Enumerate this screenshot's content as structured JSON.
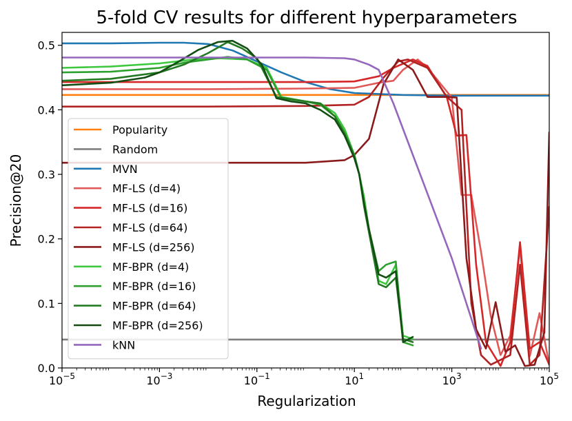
{
  "chart_data": {
    "type": "line",
    "title": "5-fold CV results for different hyperparameters",
    "xlabel": "Regularization",
    "ylabel": "Precision@20",
    "xscale": "log",
    "xlim": [
      1e-05,
      100000
    ],
    "ylim": [
      0.0,
      0.52
    ],
    "xticks": [
      {
        "value": 1e-05,
        "base": "10",
        "exp": "−5"
      },
      {
        "value": 0.001,
        "base": "10",
        "exp": "−3"
      },
      {
        "value": 0.1,
        "base": "10",
        "exp": "−1"
      },
      {
        "value": 10,
        "base": "10",
        "exp": "1"
      },
      {
        "value": 1000,
        "base": "10",
        "exp": "3"
      },
      {
        "value": 100000,
        "base": "10",
        "exp": "5"
      }
    ],
    "yticks": [
      {
        "value": 0.0,
        "label": "0.0"
      },
      {
        "value": 0.1,
        "label": "0.1"
      },
      {
        "value": 0.2,
        "label": "0.2"
      },
      {
        "value": 0.3,
        "label": "0.3"
      },
      {
        "value": 0.4,
        "label": "0.4"
      },
      {
        "value": 0.5,
        "label": "0.5"
      }
    ],
    "legend_position": "lower-left",
    "series": [
      {
        "name": "Popularity",
        "color": "#ff7f0e",
        "points": [
          [
            -5,
            0.423
          ],
          [
            5,
            0.423
          ]
        ]
      },
      {
        "name": "Random",
        "color": "#7f7f7f",
        "points": [
          [
            -5,
            0.044
          ],
          [
            5,
            0.044
          ]
        ]
      },
      {
        "name": "MVN",
        "color": "#1f77b4",
        "points": [
          [
            -5,
            0.503
          ],
          [
            -4,
            0.503
          ],
          [
            -3,
            0.504
          ],
          [
            -2.5,
            0.504
          ],
          [
            -2,
            0.502
          ],
          [
            -1.5,
            0.492
          ],
          [
            -1,
            0.475
          ],
          [
            -0.5,
            0.458
          ],
          [
            0,
            0.443
          ],
          [
            0.5,
            0.432
          ],
          [
            1,
            0.426
          ],
          [
            2,
            0.423
          ],
          [
            3,
            0.422
          ],
          [
            4,
            0.422
          ],
          [
            5,
            0.422
          ]
        ]
      },
      {
        "name": "MF-LS (d=4)",
        "color": "#e05858",
        "points": [
          [
            -5,
            0.432
          ],
          [
            -2,
            0.432
          ],
          [
            0,
            0.433
          ],
          [
            1,
            0.434
          ],
          [
            1.5,
            0.442
          ],
          [
            1.8,
            0.445
          ],
          [
            2.0,
            0.462
          ],
          [
            2.3,
            0.478
          ],
          [
            2.5,
            0.465
          ],
          [
            3.0,
            0.419
          ],
          [
            3.2,
            0.268
          ],
          [
            3.4,
            0.268
          ],
          [
            3.6,
            0.18
          ],
          [
            3.8,
            0.08
          ],
          [
            4.0,
            0.02
          ],
          [
            4.2,
            0.05
          ],
          [
            4.4,
            0.187
          ],
          [
            4.6,
            0.018
          ],
          [
            4.8,
            0.085
          ],
          [
            5.0,
            0.005
          ]
        ]
      },
      {
        "name": "MF-LS (d=16)",
        "color": "#d62728",
        "points": [
          [
            -5,
            0.443
          ],
          [
            -2,
            0.443
          ],
          [
            0,
            0.443
          ],
          [
            1,
            0.444
          ],
          [
            1.5,
            0.452
          ],
          [
            1.8,
            0.465
          ],
          [
            2.2,
            0.478
          ],
          [
            2.5,
            0.468
          ],
          [
            2.9,
            0.419
          ],
          [
            3.1,
            0.36
          ],
          [
            3.3,
            0.361
          ],
          [
            3.5,
            0.16
          ],
          [
            3.7,
            0.04
          ],
          [
            4.0,
            0.003
          ],
          [
            4.2,
            0.04
          ],
          [
            4.4,
            0.195
          ],
          [
            4.6,
            0.03
          ],
          [
            4.8,
            0.04
          ],
          [
            5.0,
            0.005
          ]
        ]
      },
      {
        "name": "MF-LS (d=64)",
        "color": "#b22222",
        "points": [
          [
            -5,
            0.405
          ],
          [
            -2,
            0.405
          ],
          [
            0,
            0.406
          ],
          [
            1,
            0.408
          ],
          [
            1.3,
            0.42
          ],
          [
            1.6,
            0.45
          ],
          [
            1.9,
            0.475
          ],
          [
            2.1,
            0.478
          ],
          [
            2.5,
            0.465
          ],
          [
            2.9,
            0.42
          ],
          [
            3.2,
            0.4
          ],
          [
            3.4,
            0.1
          ],
          [
            3.6,
            0.02
          ],
          [
            3.8,
            0.005
          ],
          [
            4.2,
            0.02
          ],
          [
            4.4,
            0.16
          ],
          [
            4.6,
            0.005
          ],
          [
            4.8,
            0.02
          ],
          [
            5.0,
            0.25
          ]
        ]
      },
      {
        "name": "MF-LS (d=256)",
        "color": "#8b1a1a",
        "points": [
          [
            -5,
            0.318
          ],
          [
            -2,
            0.318
          ],
          [
            0,
            0.318
          ],
          [
            0.8,
            0.322
          ],
          [
            1.0,
            0.33
          ],
          [
            1.3,
            0.355
          ],
          [
            1.6,
            0.44
          ],
          [
            1.9,
            0.478
          ],
          [
            2.2,
            0.462
          ],
          [
            2.5,
            0.42
          ],
          [
            2.9,
            0.42
          ],
          [
            3.1,
            0.419
          ],
          [
            3.3,
            0.17
          ],
          [
            3.5,
            0.06
          ],
          [
            3.7,
            0.03
          ],
          [
            3.9,
            0.102
          ],
          [
            4.1,
            0.025
          ],
          [
            4.3,
            0.035
          ],
          [
            4.5,
            0.003
          ],
          [
            4.7,
            0.005
          ],
          [
            4.9,
            0.055
          ],
          [
            5.0,
            0.365
          ]
        ]
      },
      {
        "name": "MF-BPR (d=4)",
        "color": "#3ec83e",
        "points": [
          [
            -5,
            0.465
          ],
          [
            -4,
            0.467
          ],
          [
            -3,
            0.472
          ],
          [
            -2.3,
            0.478
          ],
          [
            -1.8,
            0.48
          ],
          [
            -1.2,
            0.478
          ],
          [
            -0.8,
            0.465
          ],
          [
            -0.5,
            0.42
          ],
          [
            0,
            0.413
          ],
          [
            0.3,
            0.41
          ],
          [
            0.6,
            0.395
          ],
          [
            0.8,
            0.37
          ],
          [
            1.0,
            0.33
          ],
          [
            1.1,
            0.3
          ],
          [
            1.2,
            0.265
          ],
          [
            1.3,
            0.215
          ],
          [
            1.4,
            0.18
          ],
          [
            1.5,
            0.135
          ],
          [
            1.65,
            0.13
          ],
          [
            1.85,
            0.16
          ],
          [
            2.0,
            0.05
          ],
          [
            2.2,
            0.045
          ]
        ]
      },
      {
        "name": "MF-BPR (d=16)",
        "color": "#2ca02c",
        "points": [
          [
            -5,
            0.458
          ],
          [
            -4,
            0.459
          ],
          [
            -3,
            0.465
          ],
          [
            -2.5,
            0.473
          ],
          [
            -2,
            0.478
          ],
          [
            -1.6,
            0.482
          ],
          [
            -1.2,
            0.478
          ],
          [
            -0.8,
            0.462
          ],
          [
            -0.5,
            0.418
          ],
          [
            0,
            0.413
          ],
          [
            0.3,
            0.408
          ],
          [
            0.6,
            0.39
          ],
          [
            0.8,
            0.365
          ],
          [
            1.0,
            0.33
          ],
          [
            1.1,
            0.3
          ],
          [
            1.2,
            0.255
          ],
          [
            1.3,
            0.215
          ],
          [
            1.5,
            0.15
          ],
          [
            1.65,
            0.16
          ],
          [
            1.85,
            0.165
          ],
          [
            2.0,
            0.04
          ],
          [
            2.2,
            0.035
          ]
        ]
      },
      {
        "name": "MF-BPR (d=64)",
        "color": "#237a23",
        "points": [
          [
            -5,
            0.445
          ],
          [
            -4,
            0.448
          ],
          [
            -3,
            0.458
          ],
          [
            -2.5,
            0.47
          ],
          [
            -2,
            0.488
          ],
          [
            -1.6,
            0.505
          ],
          [
            -1.3,
            0.495
          ],
          [
            -1.0,
            0.48
          ],
          [
            -0.6,
            0.42
          ],
          [
            0,
            0.413
          ],
          [
            0.3,
            0.41
          ],
          [
            0.6,
            0.39
          ],
          [
            0.8,
            0.362
          ],
          [
            1.0,
            0.328
          ],
          [
            1.1,
            0.3
          ],
          [
            1.2,
            0.25
          ],
          [
            1.3,
            0.21
          ],
          [
            1.5,
            0.13
          ],
          [
            1.65,
            0.125
          ],
          [
            1.85,
            0.14
          ],
          [
            2.0,
            0.045
          ],
          [
            2.2,
            0.04
          ]
        ]
      },
      {
        "name": "MF-BPR (d=256)",
        "color": "#134d13",
        "points": [
          [
            -5,
            0.438
          ],
          [
            -4,
            0.442
          ],
          [
            -3.3,
            0.45
          ],
          [
            -3,
            0.458
          ],
          [
            -2.6,
            0.475
          ],
          [
            -2.2,
            0.493
          ],
          [
            -1.8,
            0.505
          ],
          [
            -1.5,
            0.507
          ],
          [
            -1.2,
            0.495
          ],
          [
            -0.9,
            0.47
          ],
          [
            -0.6,
            0.418
          ],
          [
            -0.3,
            0.413
          ],
          [
            0,
            0.41
          ],
          [
            0.3,
            0.4
          ],
          [
            0.6,
            0.385
          ],
          [
            0.8,
            0.36
          ],
          [
            1.0,
            0.325
          ],
          [
            1.1,
            0.3
          ],
          [
            1.2,
            0.255
          ],
          [
            1.3,
            0.215
          ],
          [
            1.5,
            0.145
          ],
          [
            1.65,
            0.14
          ],
          [
            1.85,
            0.15
          ],
          [
            2.0,
            0.04
          ],
          [
            2.2,
            0.048
          ]
        ]
      },
      {
        "name": "kNN",
        "color": "#9467bd",
        "points": [
          [
            -5,
            0.481
          ],
          [
            -4,
            0.481
          ],
          [
            -3,
            0.481
          ],
          [
            -2,
            0.481
          ],
          [
            -1,
            0.481
          ],
          [
            0,
            0.481
          ],
          [
            0.8,
            0.48
          ],
          [
            1.0,
            0.478
          ],
          [
            1.3,
            0.47
          ],
          [
            1.5,
            0.462
          ],
          [
            1.8,
            0.41
          ],
          [
            2.5,
            0.27
          ],
          [
            3.0,
            0.17
          ],
          [
            3.6,
            0.03
          ]
        ]
      }
    ]
  }
}
